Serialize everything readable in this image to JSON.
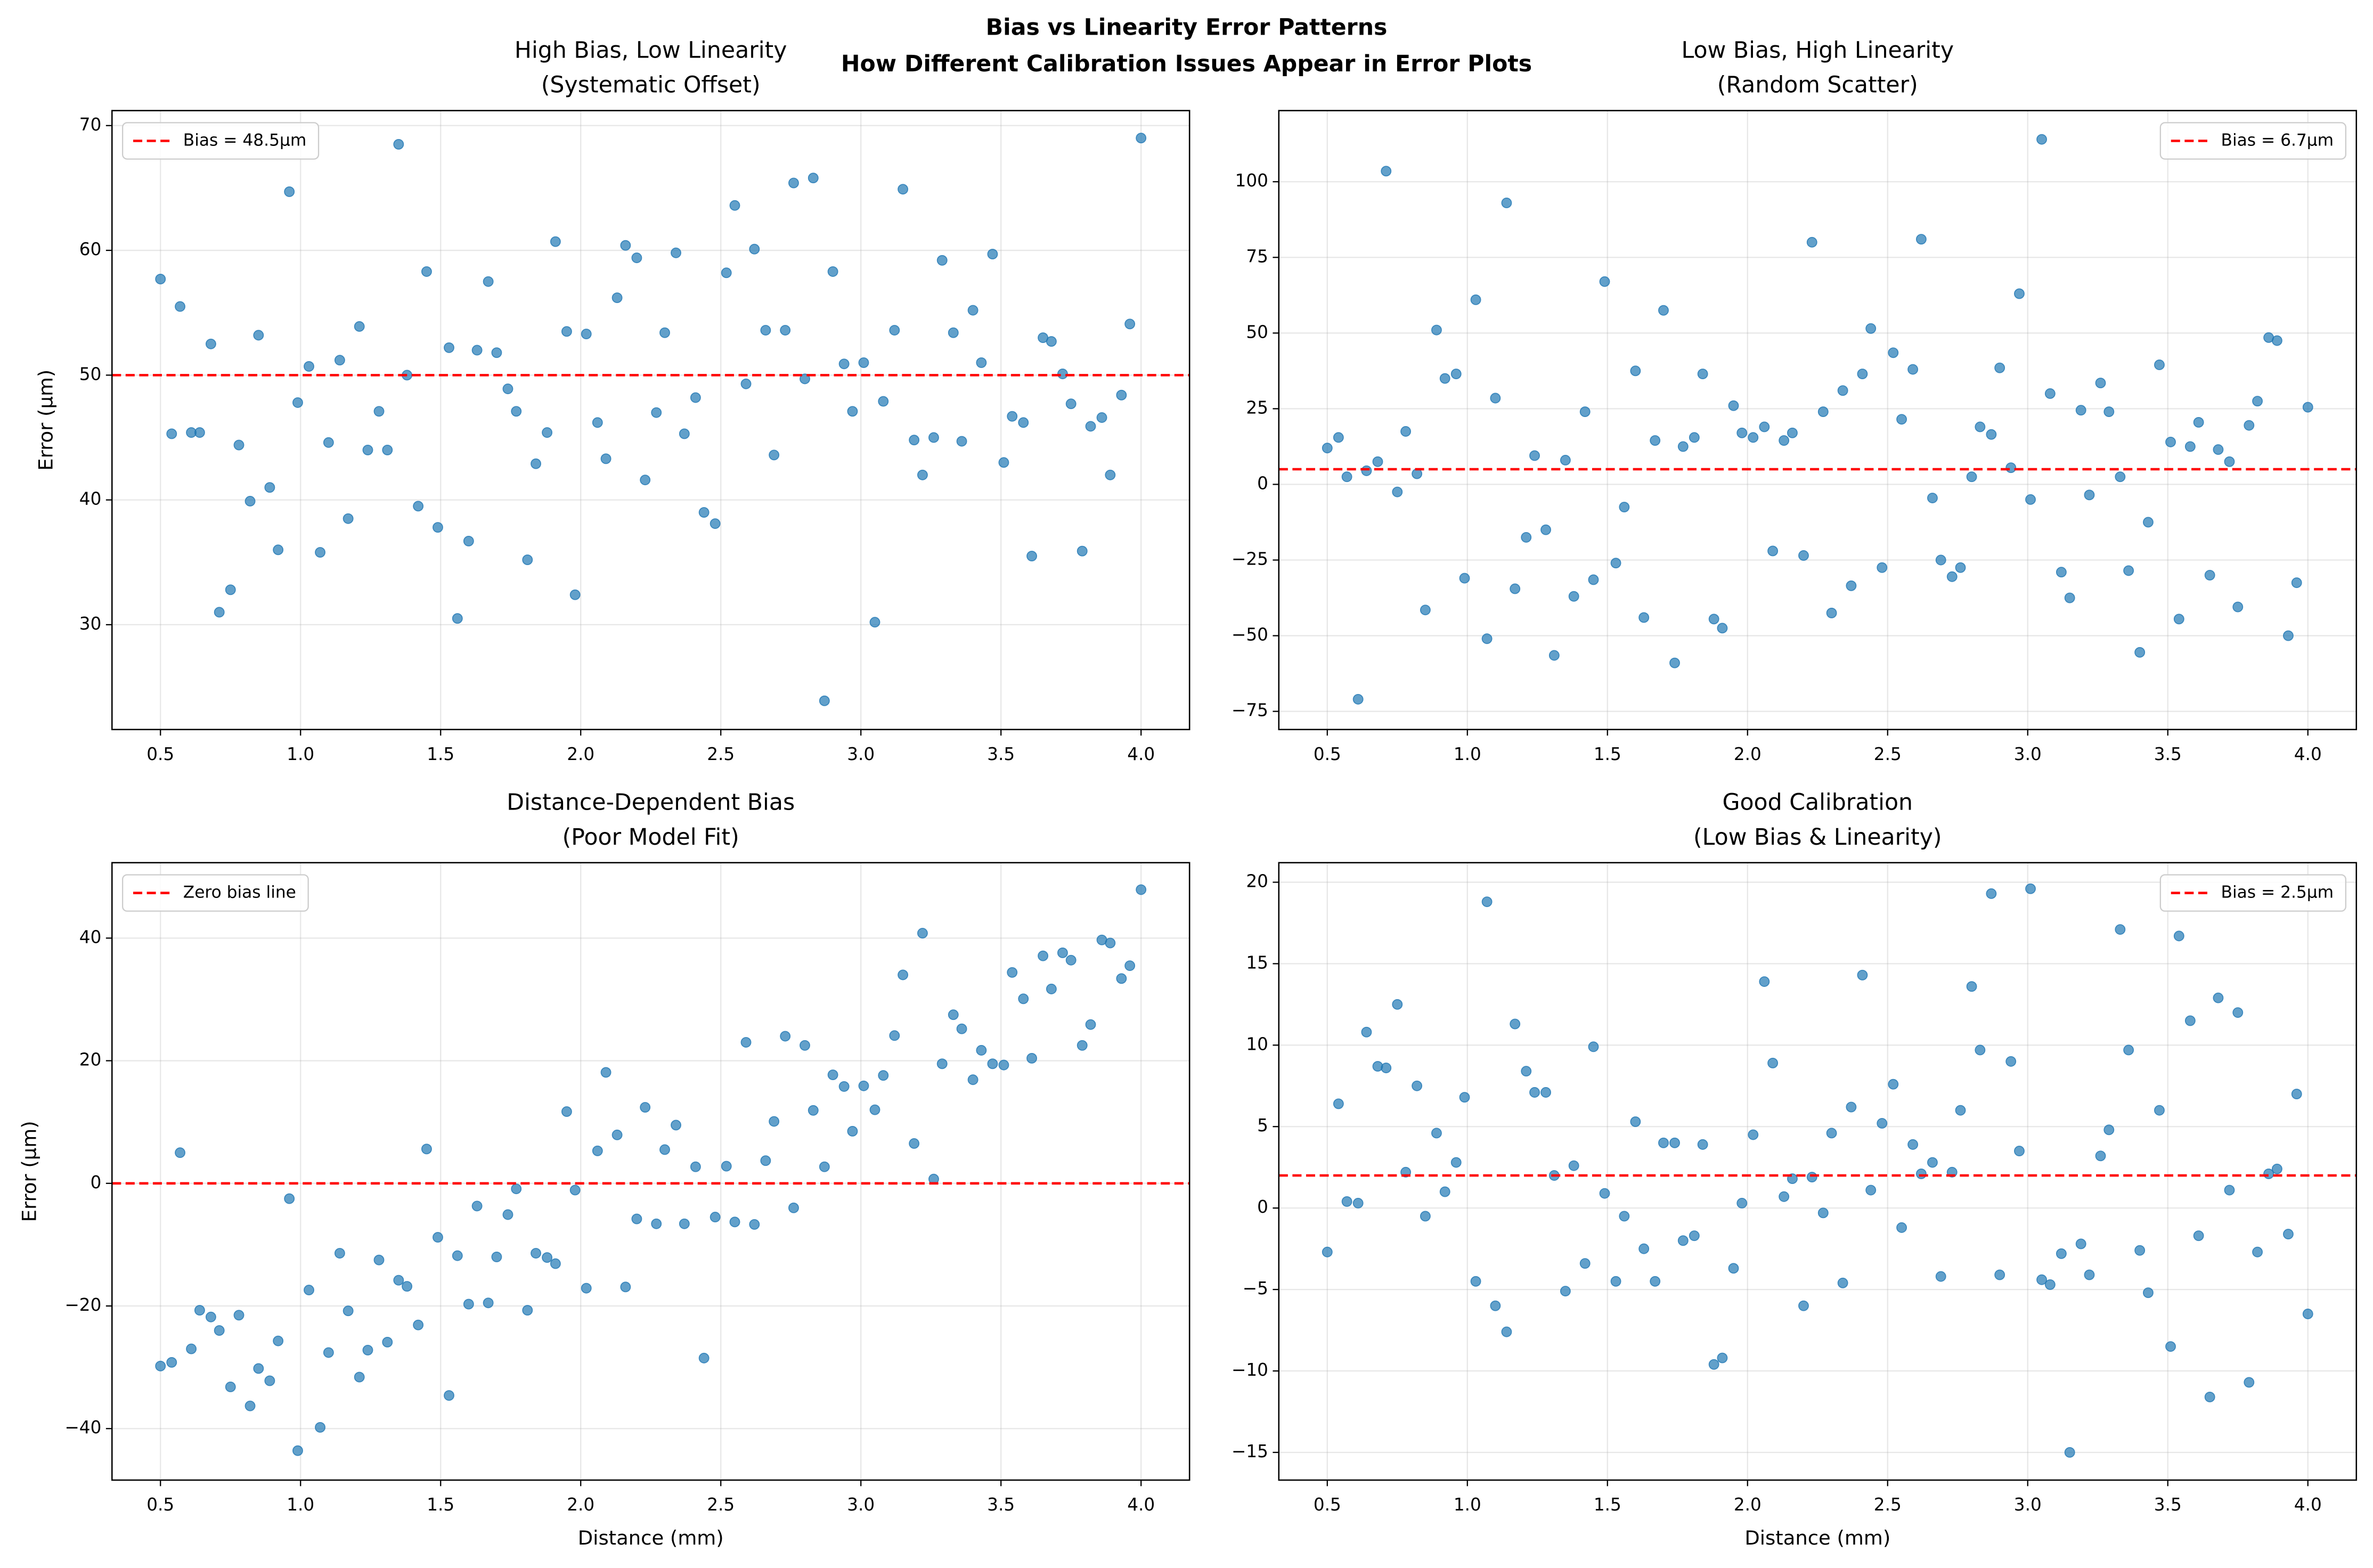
{
  "title": [
    "Bias vs Linearity Error Patterns",
    "How Different Calibration Issues Appear in Error Plots"
  ],
  "chart_data": [
    {
      "type": "scatter",
      "title": [
        "High Bias, Low Linearity",
        "(Systematic Offset)"
      ],
      "ylabel": "Error (µm)",
      "color": "#1f77b4",
      "grid": true,
      "legend": "upper left",
      "reference_line": {
        "value": 50,
        "label": "Bias = 48.5µm",
        "color": "#ff0000"
      },
      "xlim": [
        0.327,
        4.173
      ],
      "ylim": [
        21.6,
        71.2
      ],
      "xticks": [
        0.5,
        {
          "value": 1,
          "label": "1.0"
        },
        1.5,
        {
          "value": 2,
          "label": "2.0"
        },
        2.5,
        {
          "value": 3,
          "label": "3.0"
        },
        3.5,
        {
          "value": 4,
          "label": "4.0"
        }
      ],
      "yticks": [
        30,
        40,
        50,
        60,
        70
      ],
      "x": [
        0.5,
        0.54,
        0.57,
        0.61,
        0.64,
        0.68,
        0.71,
        0.75,
        0.78,
        0.82,
        0.85,
        0.89,
        0.92,
        0.96,
        0.99,
        1.03,
        1.07,
        1.1,
        1.14,
        1.17,
        1.21,
        1.24,
        1.28,
        1.31,
        1.35,
        1.38,
        1.42,
        1.45,
        1.49,
        1.53,
        1.56,
        1.6,
        1.63,
        1.67,
        1.7,
        1.74,
        1.77,
        1.81,
        1.84,
        1.88,
        1.91,
        1.95,
        1.98,
        2.02,
        2.06,
        2.09,
        2.13,
        2.16,
        2.2,
        2.23,
        2.27,
        2.3,
        2.34,
        2.37,
        2.41,
        2.44,
        2.48,
        2.52,
        2.55,
        2.59,
        2.62,
        2.66,
        2.69,
        2.73,
        2.76,
        2.8,
        2.83,
        2.87,
        2.9,
        2.94,
        2.97,
        3.01,
        3.05,
        3.08,
        3.12,
        3.15,
        3.19,
        3.22,
        3.26,
        3.29,
        3.33,
        3.36,
        3.4,
        3.43,
        3.47,
        3.51,
        3.54,
        3.58,
        3.61,
        3.65,
        3.68,
        3.72,
        3.75,
        3.79,
        3.82,
        3.86,
        3.89,
        3.93,
        3.96,
        4.0
      ],
      "values": [
        57.7,
        45.3,
        55.5,
        45.4,
        45.4,
        52.5,
        31,
        32.8,
        44.4,
        39.9,
        53.2,
        41,
        36,
        64.7,
        47.8,
        50.7,
        35.8,
        44.6,
        51.2,
        38.5,
        53.9,
        44,
        47.1,
        44,
        68.5,
        50,
        39.5,
        58.3,
        37.8,
        52.2,
        30.5,
        36.7,
        52,
        57.5,
        51.8,
        48.9,
        47.1,
        35.2,
        42.9,
        45.4,
        60.7,
        53.5,
        32.4,
        53.3,
        46.2,
        43.3,
        56.2,
        60.4,
        59.4,
        41.6,
        47,
        53.4,
        59.8,
        45.3,
        48.2,
        39,
        38.1,
        58.2,
        63.6,
        49.3,
        60.1,
        53.6,
        43.6,
        53.6,
        65.4,
        49.7,
        65.8,
        23.9,
        58.3,
        50.9,
        47.1,
        51,
        30.2,
        47.9,
        53.6,
        64.9,
        44.8,
        42,
        45,
        59.2,
        53.4,
        44.7,
        55.2,
        51,
        59.7,
        43,
        46.7,
        46.2,
        35.5,
        53,
        52.7,
        50.1,
        47.7,
        35.9,
        45.9,
        46.6,
        42,
        48.4,
        54.1,
        69
      ]
    },
    {
      "type": "scatter",
      "title": [
        "Low Bias, High Linearity",
        "(Random Scatter)"
      ],
      "color": "#1f77b4",
      "grid": true,
      "legend": "upper right",
      "reference_line": {
        "value": 5,
        "label": "Bias = 6.7µm",
        "color": "#ff0000"
      },
      "xlim": [
        0.327,
        4.173
      ],
      "ylim": [
        -81,
        123.5
      ],
      "xticks": [
        0.5,
        {
          "value": 1,
          "label": "1.0"
        },
        1.5,
        {
          "value": 2,
          "label": "2.0"
        },
        2.5,
        {
          "value": 3,
          "label": "3.0"
        },
        3.5,
        {
          "value": 4,
          "label": "4.0"
        }
      ],
      "yticks": [
        {
          "value": -75,
          "label": "−75"
        },
        {
          "value": -50,
          "label": "−50"
        },
        {
          "value": -25,
          "label": "−25"
        },
        0,
        25,
        50,
        75,
        100
      ],
      "x": [
        0.5,
        0.54,
        0.57,
        0.61,
        0.64,
        0.68,
        0.71,
        0.75,
        0.78,
        0.82,
        0.85,
        0.89,
        0.92,
        0.96,
        0.99,
        1.03,
        1.07,
        1.1,
        1.14,
        1.17,
        1.21,
        1.24,
        1.28,
        1.31,
        1.35,
        1.38,
        1.42,
        1.45,
        1.49,
        1.53,
        1.56,
        1.6,
        1.63,
        1.67,
        1.7,
        1.74,
        1.77,
        1.81,
        1.84,
        1.88,
        1.91,
        1.95,
        1.98,
        2.02,
        2.06,
        2.09,
        2.13,
        2.16,
        2.2,
        2.23,
        2.27,
        2.3,
        2.34,
        2.37,
        2.41,
        2.44,
        2.48,
        2.52,
        2.55,
        2.59,
        2.62,
        2.66,
        2.69,
        2.73,
        2.76,
        2.8,
        2.83,
        2.87,
        2.9,
        2.94,
        2.97,
        3.01,
        3.05,
        3.08,
        3.12,
        3.15,
        3.19,
        3.22,
        3.26,
        3.29,
        3.33,
        3.36,
        3.4,
        3.43,
        3.47,
        3.51,
        3.54,
        3.58,
        3.61,
        3.65,
        3.68,
        3.72,
        3.75,
        3.79,
        3.82,
        3.86,
        3.89,
        3.93,
        3.96,
        4.0
      ],
      "values": [
        12,
        15.5,
        2.5,
        -71,
        4.5,
        7.5,
        103.5,
        -2.5,
        17.5,
        3.5,
        -41.5,
        51,
        35,
        36.5,
        -31,
        61,
        -51,
        28.5,
        93,
        -34.5,
        -17.5,
        9.5,
        -15,
        -56.5,
        8,
        -37,
        24,
        -31.5,
        67,
        -26,
        -7.5,
        37.5,
        -44,
        14.5,
        57.5,
        -59,
        12.5,
        15.5,
        36.5,
        -44.5,
        -47.5,
        26,
        17,
        15.5,
        19,
        -22,
        14.5,
        17,
        -23.5,
        80,
        24,
        -42.5,
        31,
        -33.5,
        36.5,
        51.5,
        -27.5,
        43.5,
        21.5,
        38,
        81,
        -4.5,
        -25,
        -30.5,
        -27.5,
        2.5,
        19,
        16.5,
        38.5,
        5.5,
        63,
        -5,
        114,
        30,
        -29,
        -37.5,
        24.5,
        -3.5,
        33.5,
        24,
        2.5,
        -28.5,
        -55.5,
        -12.5,
        39.5,
        14,
        -44.5,
        12.5,
        20.5,
        -30,
        11.5,
        7.5,
        -40.5,
        19.5,
        27.5,
        48.5,
        47.5,
        -50,
        -32.5,
        25.5
      ]
    },
    {
      "type": "scatter",
      "title": [
        "Distance-Dependent Bias",
        "(Poor Model Fit)"
      ],
      "xlabel": "Distance (mm)",
      "ylabel": "Error (µm)",
      "color": "#1f77b4",
      "grid": true,
      "legend": "upper left",
      "reference_line": {
        "value": 0,
        "label": "Zero bias line",
        "color": "#ff0000"
      },
      "xlim": [
        0.327,
        4.173
      ],
      "ylim": [
        -48.4,
        52.3
      ],
      "xticks": [
        0.5,
        {
          "value": 1,
          "label": "1.0"
        },
        1.5,
        {
          "value": 2,
          "label": "2.0"
        },
        2.5,
        {
          "value": 3,
          "label": "3.0"
        },
        3.5,
        {
          "value": 4,
          "label": "4.0"
        }
      ],
      "yticks": [
        {
          "value": -40,
          "label": "−40"
        },
        {
          "value": -20,
          "label": "−20"
        },
        0,
        20,
        40
      ],
      "x": [
        0.5,
        0.54,
        0.57,
        0.61,
        0.64,
        0.68,
        0.71,
        0.75,
        0.78,
        0.82,
        0.85,
        0.89,
        0.92,
        0.96,
        0.99,
        1.03,
        1.07,
        1.1,
        1.14,
        1.17,
        1.21,
        1.24,
        1.28,
        1.31,
        1.35,
        1.38,
        1.42,
        1.45,
        1.49,
        1.53,
        1.56,
        1.6,
        1.63,
        1.67,
        1.7,
        1.74,
        1.77,
        1.81,
        1.84,
        1.88,
        1.91,
        1.95,
        1.98,
        2.02,
        2.06,
        2.09,
        2.13,
        2.16,
        2.2,
        2.23,
        2.27,
        2.3,
        2.34,
        2.37,
        2.41,
        2.44,
        2.48,
        2.52,
        2.55,
        2.59,
        2.62,
        2.66,
        2.69,
        2.73,
        2.76,
        2.8,
        2.83,
        2.87,
        2.9,
        2.94,
        2.97,
        3.01,
        3.05,
        3.08,
        3.12,
        3.15,
        3.19,
        3.22,
        3.26,
        3.29,
        3.33,
        3.36,
        3.4,
        3.43,
        3.47,
        3.51,
        3.54,
        3.58,
        3.61,
        3.65,
        3.68,
        3.72,
        3.75,
        3.79,
        3.82,
        3.86,
        3.89,
        3.93,
        3.96,
        4.0
      ],
      "values": [
        -29.8,
        -29.2,
        5,
        -27,
        -20.7,
        -21.8,
        -24,
        -33.2,
        -21.5,
        -36.3,
        -30.2,
        -32.2,
        -25.7,
        -2.5,
        -43.6,
        -17.4,
        -39.8,
        -27.6,
        -11.4,
        -20.8,
        -31.6,
        -27.2,
        -12.5,
        -25.9,
        -15.8,
        -16.8,
        -23.1,
        5.6,
        -8.8,
        -34.6,
        -11.8,
        -19.7,
        -3.7,
        -19.5,
        -12,
        -5.1,
        -0.9,
        -20.7,
        -11.4,
        -12.1,
        -13.1,
        11.7,
        -1.1,
        -17.1,
        5.3,
        18.1,
        7.9,
        -16.9,
        -5.8,
        12.4,
        -6.6,
        5.5,
        9.5,
        -6.6,
        2.7,
        -28.5,
        -5.5,
        2.8,
        -6.3,
        23,
        -6.7,
        3.7,
        10.1,
        24,
        -4,
        22.5,
        11.9,
        2.7,
        17.7,
        15.8,
        8.5,
        15.9,
        12,
        17.6,
        24.1,
        34,
        6.5,
        40.8,
        0.7,
        19.5,
        27.5,
        25.2,
        16.9,
        21.7,
        19.5,
        19.3,
        34.4,
        30.1,
        20.4,
        37.1,
        31.7,
        37.6,
        36.4,
        22.5,
        25.9,
        39.7,
        39.2,
        33.4,
        35.5,
        47.9
      ]
    },
    {
      "type": "scatter",
      "title": [
        "Good Calibration",
        "(Low Bias & Linearity)"
      ],
      "xlabel": "Distance (mm)",
      "color": "#1f77b4",
      "grid": true,
      "legend": "upper right",
      "reference_line": {
        "value": 2,
        "label": "Bias = 2.5µm",
        "color": "#ff0000"
      },
      "xlim": [
        0.327,
        4.173
      ],
      "ylim": [
        -16.7,
        21.2
      ],
      "xticks": [
        0.5,
        {
          "value": 1,
          "label": "1.0"
        },
        1.5,
        {
          "value": 2,
          "label": "2.0"
        },
        2.5,
        {
          "value": 3,
          "label": "3.0"
        },
        3.5,
        {
          "value": 4,
          "label": "4.0"
        }
      ],
      "yticks": [
        {
          "value": -15,
          "label": "−15"
        },
        {
          "value": -10,
          "label": "−10"
        },
        {
          "value": -5,
          "label": "−5"
        },
        0,
        5,
        10,
        15,
        20
      ],
      "x": [
        0.5,
        0.54,
        0.57,
        0.61,
        0.64,
        0.68,
        0.71,
        0.75,
        0.78,
        0.82,
        0.85,
        0.89,
        0.92,
        0.96,
        0.99,
        1.03,
        1.07,
        1.1,
        1.14,
        1.17,
        1.21,
        1.24,
        1.28,
        1.31,
        1.35,
        1.38,
        1.42,
        1.45,
        1.49,
        1.53,
        1.56,
        1.6,
        1.63,
        1.67,
        1.7,
        1.74,
        1.77,
        1.81,
        1.84,
        1.88,
        1.91,
        1.95,
        1.98,
        2.02,
        2.06,
        2.09,
        2.13,
        2.16,
        2.2,
        2.23,
        2.27,
        2.3,
        2.34,
        2.37,
        2.41,
        2.44,
        2.48,
        2.52,
        2.55,
        2.59,
        2.62,
        2.66,
        2.69,
        2.73,
        2.76,
        2.8,
        2.83,
        2.87,
        2.9,
        2.94,
        2.97,
        3.01,
        3.05,
        3.08,
        3.12,
        3.15,
        3.19,
        3.22,
        3.26,
        3.29,
        3.33,
        3.36,
        3.4,
        3.43,
        3.47,
        3.51,
        3.54,
        3.58,
        3.61,
        3.65,
        3.68,
        3.72,
        3.75,
        3.79,
        3.82,
        3.86,
        3.89,
        3.93,
        3.96,
        4.0
      ],
      "values": [
        -2.7,
        6.4,
        0.4,
        0.3,
        10.8,
        8.7,
        8.6,
        12.5,
        2.2,
        7.5,
        -0.5,
        4.6,
        1,
        2.8,
        6.8,
        -4.5,
        18.8,
        -6,
        -7.6,
        11.3,
        8.4,
        7.1,
        7.1,
        2,
        -5.1,
        2.6,
        -3.4,
        9.9,
        0.9,
        -4.5,
        -0.5,
        5.3,
        -2.5,
        -4.5,
        4,
        4,
        -2,
        -1.7,
        3.9,
        -9.6,
        -9.2,
        -3.7,
        0.3,
        4.5,
        13.9,
        8.9,
        0.7,
        1.8,
        -6,
        1.9,
        -0.3,
        4.6,
        -4.6,
        6.2,
        14.3,
        1.1,
        5.2,
        7.6,
        -1.2,
        3.9,
        2.1,
        2.8,
        -4.2,
        2.2,
        6,
        13.6,
        9.7,
        19.3,
        -4.1,
        9,
        3.5,
        19.6,
        -4.4,
        -4.7,
        -2.8,
        -15,
        -2.2,
        -4.1,
        3.2,
        4.8,
        17.1,
        9.7,
        -2.6,
        -5.2,
        6,
        -8.5,
        16.7,
        11.5,
        -1.7,
        -11.6,
        12.9,
        1.1,
        12,
        -10.7,
        -2.7,
        2.1,
        2.4,
        -1.6,
        7,
        -6.5
      ]
    }
  ]
}
